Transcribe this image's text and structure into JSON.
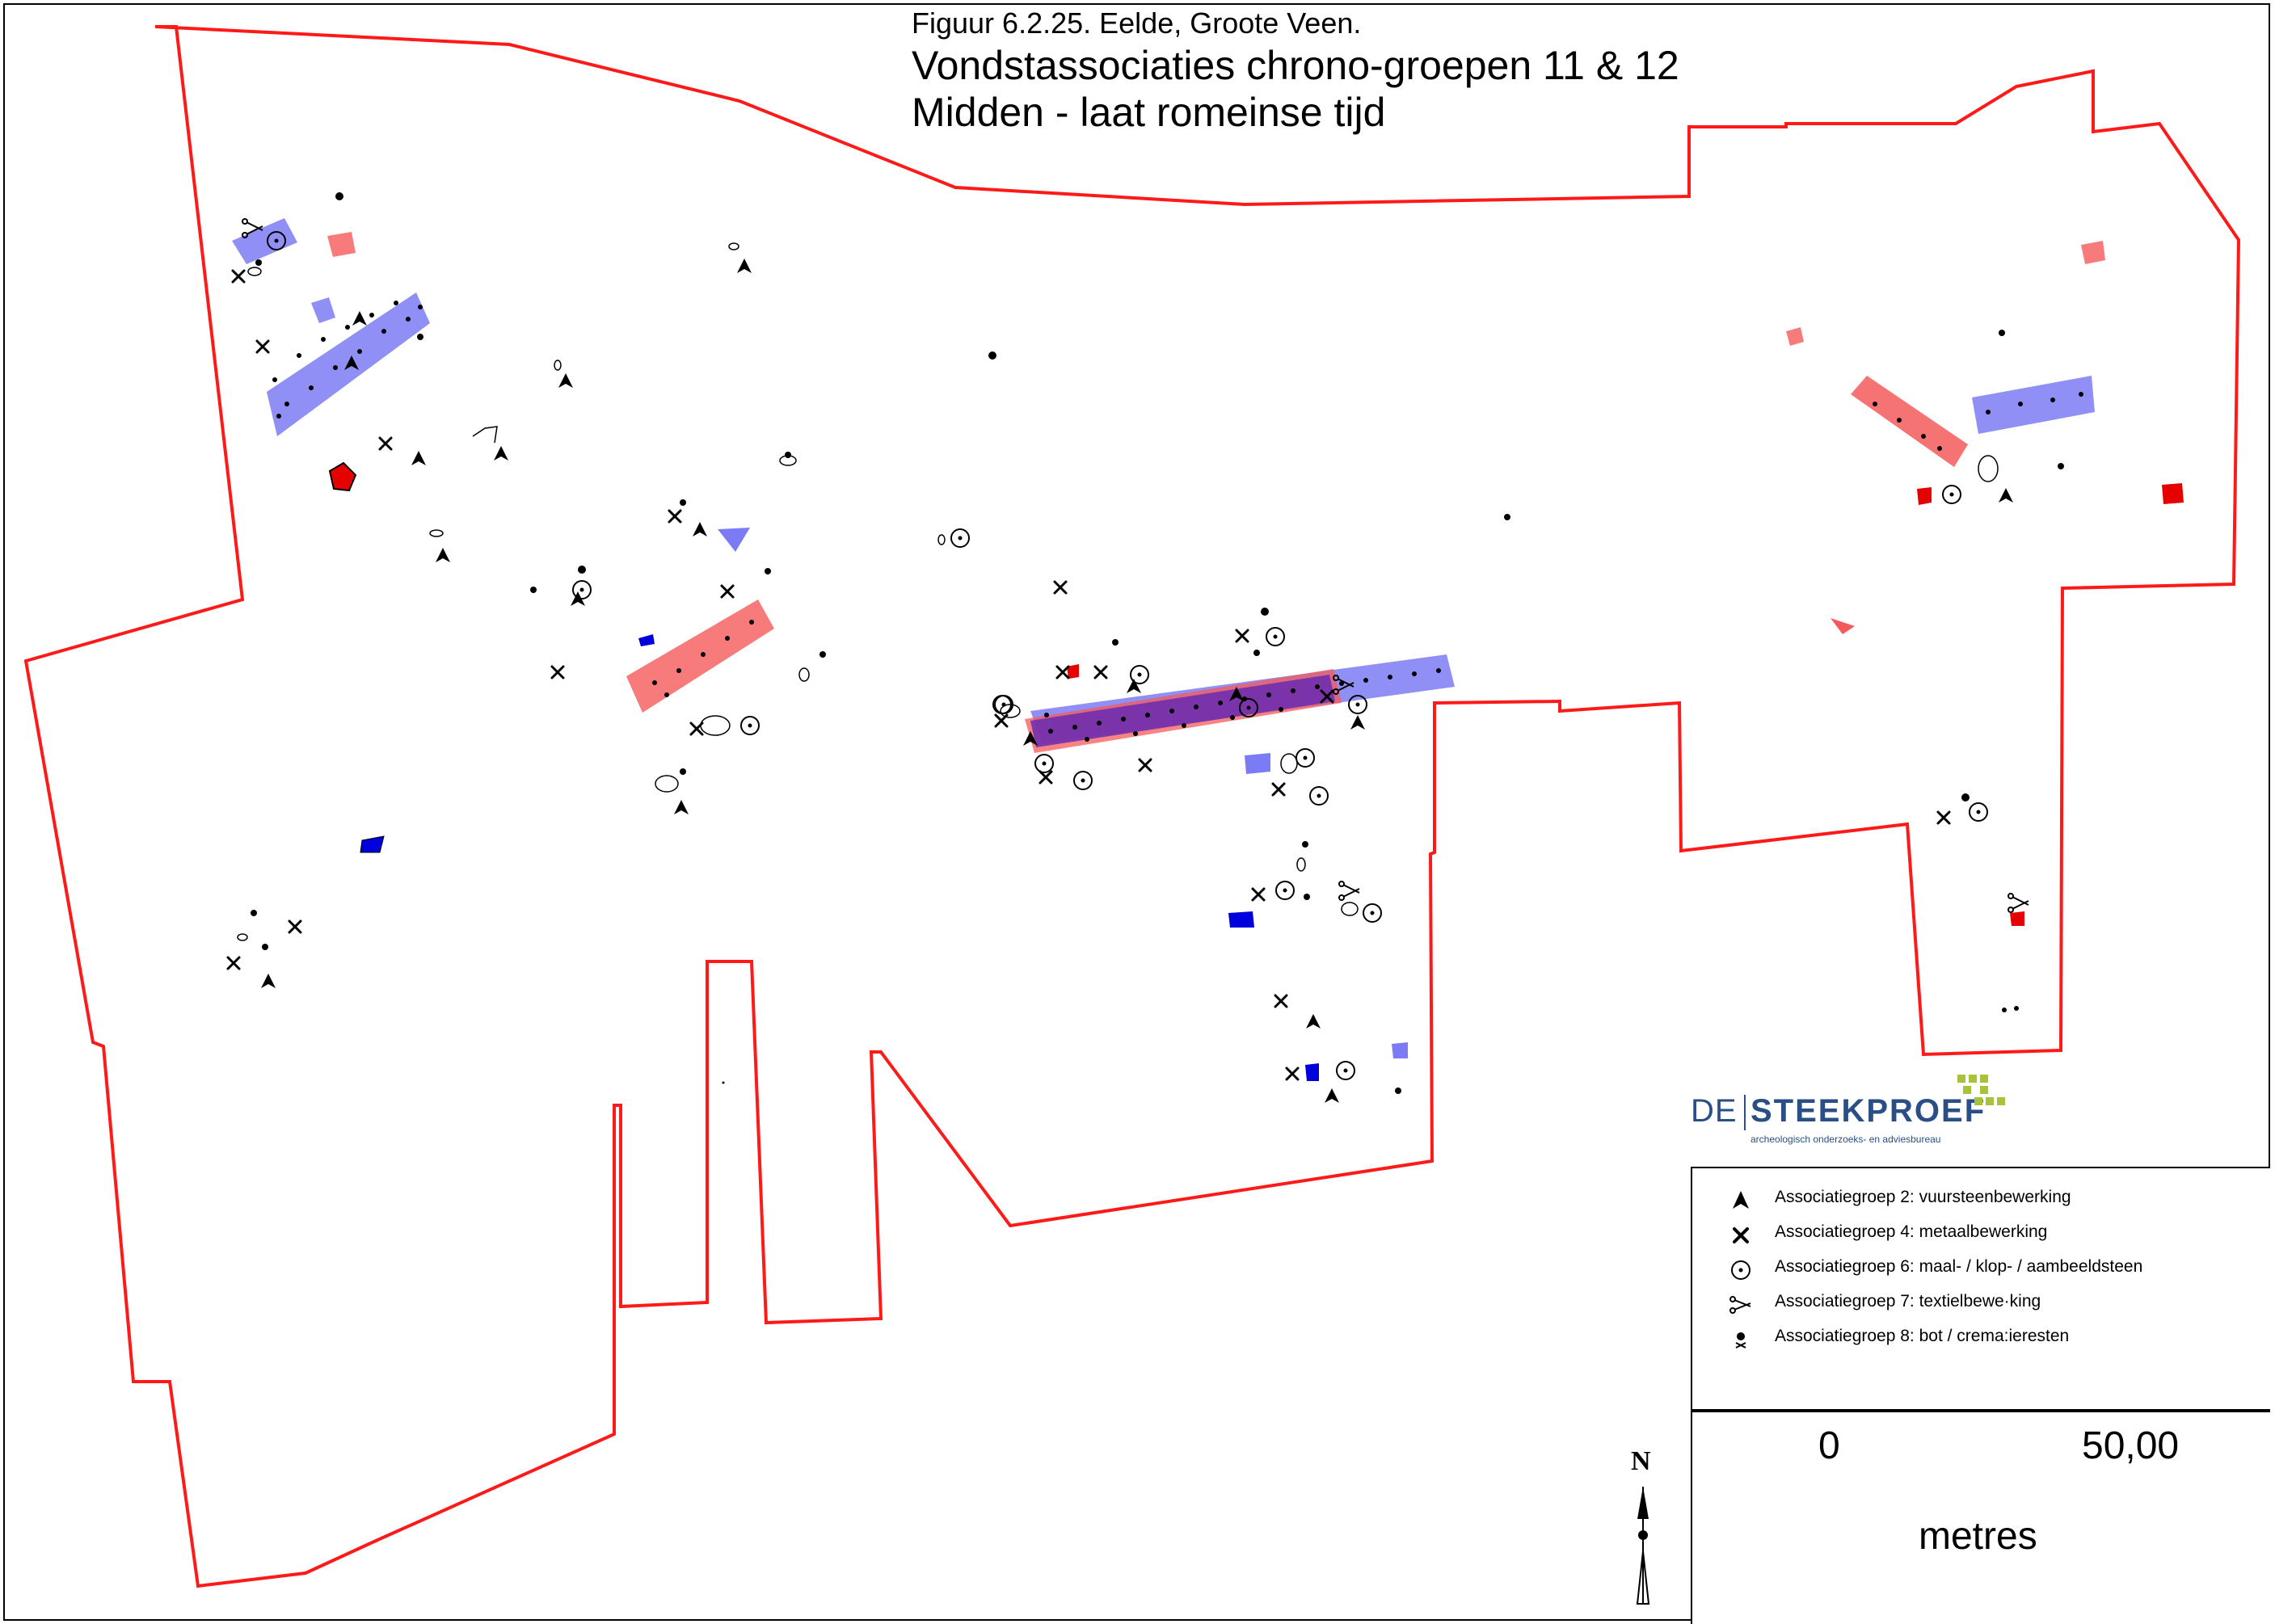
{
  "caption": {
    "figure": "Figuur 6.2.25. Eelde, Groote Veen.",
    "title_line1": "Vondstassociaties chrono-groepen 11 & 12",
    "title_line2": "Midden - laat romeinse tijd"
  },
  "logo": {
    "de": "DE",
    "name": "STEEKPROEF",
    "subtitle": "archeologisch onderzoeks- en adviesbureau",
    "colors": {
      "text": "#2a4f86",
      "squares": "#a6c33a"
    }
  },
  "legend": {
    "items": [
      {
        "icon": "arrowhead-icon",
        "label": "Associatiegroep 2: vuursteenbewerking"
      },
      {
        "icon": "hammer-icon",
        "label": "Associatiegroep 4: metaalbewerking"
      },
      {
        "icon": "millstone-icon",
        "label": "Associatiegroep 6: maal- / klop- / aambeeldsteen"
      },
      {
        "icon": "scissors-icon",
        "label": "Associatiegroep 7: textielbewe·king"
      },
      {
        "icon": "skull-icon",
        "label": "Associatiegroep 8: bot / crema:ieresten"
      }
    ]
  },
  "scale": {
    "start": "0",
    "end": "50,00",
    "unit": "metres"
  },
  "north_arrow": {
    "label": "N"
  },
  "colors": {
    "boundary": "#ff1a1a",
    "blue_feature": "#7b7bf5",
    "red_feature": "#f55a5a",
    "dark_blue": "#0000dd",
    "dark_red": "#e60000",
    "purple_overlap": "#6a2ab0"
  }
}
